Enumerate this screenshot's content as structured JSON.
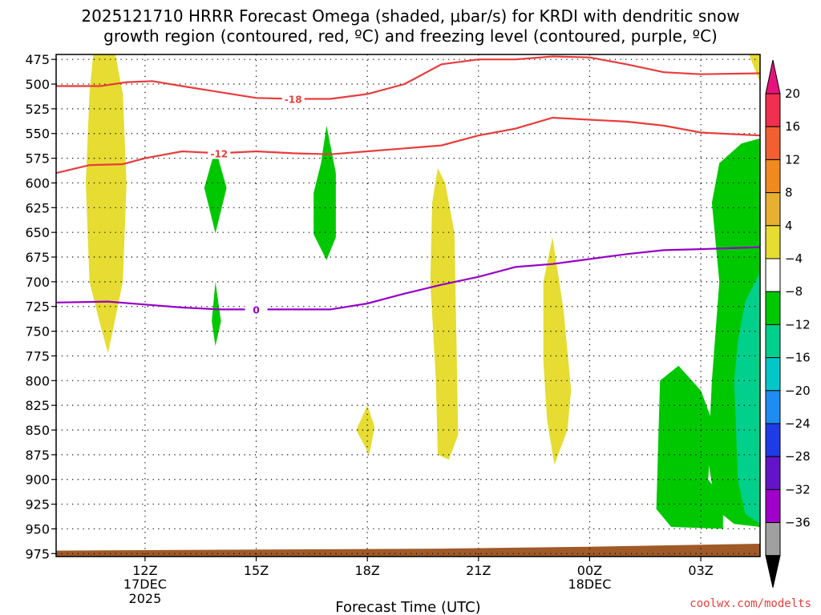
{
  "chart_data": {
    "type": "heatmap",
    "title_line1": "2025121710 HRRR Forecast Omega (shaded, μbar/s) for KRDI with dendritic snow",
    "title_line2": "growth region (contoured, red, ºC) and freezing level (contoured, purple, ºC)",
    "xlabel": "Forecast Time (UTC)",
    "credit": "coolwx.com/modelts",
    "x_range_hours": [
      9.6,
      28.6
    ],
    "y_range_hpa": [
      470,
      978
    ],
    "y_ticks": [
      475,
      500,
      525,
      550,
      575,
      600,
      625,
      650,
      675,
      700,
      725,
      750,
      775,
      800,
      825,
      850,
      875,
      900,
      925,
      950,
      975
    ],
    "x_ticks": [
      {
        "hour": 12,
        "label": "12Z",
        "sub1": "17DEC",
        "sub2": "2025"
      },
      {
        "hour": 15,
        "label": "15Z",
        "sub1": "",
        "sub2": ""
      },
      {
        "hour": 18,
        "label": "18Z",
        "sub1": "",
        "sub2": ""
      },
      {
        "hour": 21,
        "label": "21Z",
        "sub1": "",
        "sub2": ""
      },
      {
        "hour": 24,
        "label": "00Z",
        "sub1": "18DEC",
        "sub2": ""
      },
      {
        "hour": 27,
        "label": "03Z",
        "sub1": "",
        "sub2": ""
      }
    ],
    "grid": true,
    "colorbar": {
      "levels": [
        {
          "label": "20",
          "color": "#f03050"
        },
        {
          "label": "16",
          "color": "#f06030"
        },
        {
          "label": "12",
          "color": "#f08a20"
        },
        {
          "label": "8",
          "color": "#e8b030"
        },
        {
          "label": "4",
          "color": "#e6dc32"
        },
        {
          "label": "−4",
          "color": "#ffffff"
        },
        {
          "label": "−8",
          "color": "#00c800"
        },
        {
          "label": "−12",
          "color": "#00d08c"
        },
        {
          "label": "−16",
          "color": "#00c8c8"
        },
        {
          "label": "−20",
          "color": "#1e8cf0"
        },
        {
          "label": "−24",
          "color": "#1e3ce6"
        },
        {
          "label": "−28",
          "color": "#6414c8"
        },
        {
          "label": "−32",
          "color": "#a000c8"
        },
        {
          "label": "−36",
          "color": "#a0a0a0"
        }
      ],
      "top_arrow_color": "#e6147a",
      "bottom_arrow_color": "#000000"
    },
    "contours": [
      {
        "name": "-18",
        "color": "#e83c3c",
        "label_at": [
          16.0,
          515
        ],
        "points": [
          [
            9.6,
            502
          ],
          [
            10.8,
            502
          ],
          [
            11.5,
            498
          ],
          [
            12.2,
            497
          ],
          [
            13,
            502
          ],
          [
            14,
            508
          ],
          [
            15,
            514
          ],
          [
            16,
            515
          ],
          [
            17,
            515
          ],
          [
            18,
            510
          ],
          [
            19,
            500
          ],
          [
            20,
            480
          ],
          [
            21,
            475
          ],
          [
            22,
            475
          ],
          [
            23,
            472
          ],
          [
            24,
            473
          ],
          [
            25,
            480
          ],
          [
            26,
            488
          ],
          [
            27,
            490
          ],
          [
            28.6,
            489
          ]
        ]
      },
      {
        "name": "-12",
        "color": "#e83c3c",
        "label_at": [
          14.0,
          570
        ],
        "points": [
          [
            9.6,
            590
          ],
          [
            10.5,
            582
          ],
          [
            11.4,
            581
          ],
          [
            12,
            575
          ],
          [
            13,
            568
          ],
          [
            14,
            570
          ],
          [
            15,
            568
          ],
          [
            16,
            570
          ],
          [
            17,
            571
          ],
          [
            18,
            568
          ],
          [
            19,
            565
          ],
          [
            20,
            562
          ],
          [
            21,
            552
          ],
          [
            22,
            545
          ],
          [
            23,
            534
          ],
          [
            24,
            536
          ],
          [
            25,
            538
          ],
          [
            26,
            542
          ],
          [
            27,
            549
          ],
          [
            28.6,
            552
          ]
        ]
      },
      {
        "name": "0",
        "color": "#9600c8",
        "label_at": [
          15.0,
          728
        ],
        "points": [
          [
            9.6,
            721
          ],
          [
            11,
            720
          ],
          [
            12,
            723
          ],
          [
            13,
            726
          ],
          [
            14,
            728
          ],
          [
            15,
            728
          ],
          [
            16,
            728
          ],
          [
            17,
            728
          ],
          [
            18,
            722
          ],
          [
            19,
            712
          ],
          [
            20,
            703
          ],
          [
            21,
            695
          ],
          [
            22,
            685
          ],
          [
            23,
            682
          ],
          [
            24,
            677
          ],
          [
            25,
            672
          ],
          [
            26,
            668
          ],
          [
            27,
            667
          ],
          [
            28.6,
            665
          ]
        ]
      }
    ],
    "shaded_regions": [
      {
        "value_range": "4 to 8",
        "color": "#e6dc32",
        "points": [
          [
            10.6,
            468
          ],
          [
            11.2,
            468
          ],
          [
            11.4,
            510
          ],
          [
            11.5,
            600
          ],
          [
            11.4,
            700
          ],
          [
            11.1,
            755
          ],
          [
            11.0,
            772
          ],
          [
            10.8,
            745
          ],
          [
            10.5,
            700
          ],
          [
            10.4,
            600
          ],
          [
            10.5,
            510
          ]
        ]
      },
      {
        "value_range": "-4 to -8",
        "color": "#00c800",
        "points": [
          [
            13.9,
            565
          ],
          [
            14.2,
            605
          ],
          [
            13.9,
            651
          ],
          [
            13.6,
            605
          ]
        ]
      },
      {
        "value_range": "-4 to -8",
        "color": "#00c800",
        "points": [
          [
            13.9,
            700
          ],
          [
            14.05,
            740
          ],
          [
            13.9,
            765
          ],
          [
            13.8,
            740
          ]
        ]
      },
      {
        "value_range": "-4 to -8",
        "color": "#00c800",
        "points": [
          [
            16.9,
            542
          ],
          [
            17.15,
            590
          ],
          [
            17.15,
            655
          ],
          [
            16.9,
            678
          ],
          [
            16.55,
            652
          ],
          [
            16.55,
            610
          ],
          [
            16.75,
            580
          ]
        ]
      },
      {
        "value_range": "4 to 8",
        "color": "#e6dc32",
        "points": [
          [
            19.9,
            585
          ],
          [
            20.1,
            600
          ],
          [
            20.35,
            650
          ],
          [
            20.4,
            750
          ],
          [
            20.45,
            855
          ],
          [
            20.2,
            880
          ],
          [
            19.9,
            875
          ],
          [
            19.85,
            800
          ],
          [
            19.7,
            700
          ],
          [
            19.75,
            620
          ]
        ]
      },
      {
        "value_range": "4 to 8",
        "color": "#e6dc32",
        "points": [
          [
            18.0,
            825
          ],
          [
            18.2,
            847
          ],
          [
            18.05,
            875
          ],
          [
            17.7,
            850
          ]
        ]
      },
      {
        "value_range": "4 to 8",
        "color": "#e6dc32",
        "points": [
          [
            23.0,
            655
          ],
          [
            23.3,
            730
          ],
          [
            23.5,
            810
          ],
          [
            23.4,
            850
          ],
          [
            23.05,
            885
          ],
          [
            22.85,
            840
          ],
          [
            22.75,
            780
          ],
          [
            22.75,
            700
          ]
        ]
      },
      {
        "value_range": "-4 to -8",
        "color": "#00c800",
        "points": [
          [
            26.4,
            785
          ],
          [
            27.0,
            810
          ],
          [
            27.3,
            840
          ],
          [
            27.2,
            900
          ],
          [
            27.6,
            920
          ],
          [
            27.6,
            950
          ],
          [
            26.2,
            948
          ],
          [
            25.8,
            930
          ],
          [
            25.9,
            800
          ]
        ]
      },
      {
        "value_range": "-4 to -8",
        "color": "#00c800",
        "points": [
          [
            28.6,
            555
          ],
          [
            28.6,
            948
          ],
          [
            27.9,
            945
          ],
          [
            27.4,
            930
          ],
          [
            27.2,
            880
          ],
          [
            27.3,
            800
          ],
          [
            27.5,
            700
          ],
          [
            27.3,
            620
          ],
          [
            27.5,
            580
          ],
          [
            28.1,
            560
          ]
        ]
      },
      {
        "value_range": "-8 to -12",
        "color": "#00d08c",
        "points": [
          [
            28.6,
            690
          ],
          [
            28.6,
            945
          ],
          [
            28.2,
            935
          ],
          [
            28.0,
            900
          ],
          [
            27.9,
            800
          ],
          [
            28.0,
            760
          ],
          [
            28.2,
            720
          ]
        ]
      },
      {
        "value_range": "4 to 8",
        "color": "#e6dc32",
        "points": [
          [
            28.3,
            468
          ],
          [
            28.6,
            468
          ],
          [
            28.6,
            498
          ]
        ]
      }
    ],
    "terrain": {
      "color": "#a05a28",
      "top_hpa": [
        [
          9.6,
          972
        ],
        [
          20,
          970
        ],
        [
          24,
          968
        ],
        [
          28.6,
          965
        ]
      ]
    }
  }
}
